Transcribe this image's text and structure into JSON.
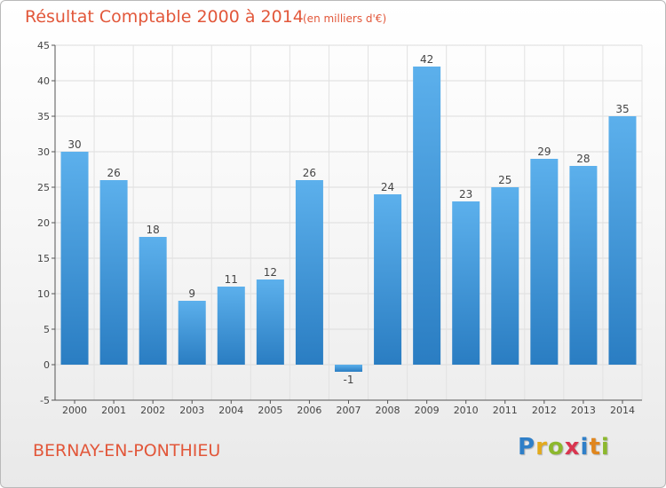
{
  "chart_data": {
    "type": "bar",
    "title": "Résultat Comptable 2000 à 2014",
    "unit_label": "(en milliers d'€)",
    "categories": [
      "2000",
      "2001",
      "2002",
      "2003",
      "2004",
      "2005",
      "2006",
      "2007",
      "2008",
      "2009",
      "2010",
      "2011",
      "2012",
      "2013",
      "2014"
    ],
    "values": [
      30,
      26,
      18,
      9,
      11,
      12,
      26,
      -1,
      24,
      42,
      23,
      25,
      29,
      28,
      35
    ],
    "ylim": [
      -5,
      45
    ],
    "yticks": [
      -5,
      0,
      5,
      10,
      15,
      20,
      25,
      30,
      35,
      40,
      45
    ],
    "xlabel": "",
    "ylabel": "",
    "grid": true,
    "bar_color": "#3d96d9"
  },
  "footer": {
    "town": "BERNAY-EN-PONTHIEU",
    "logo_letters": [
      "P",
      "r",
      "o",
      "x",
      "i",
      "t",
      "i"
    ],
    "logo_colors": [
      "#2f7fc8",
      "#e3aa1c",
      "#8cb82d",
      "#d9354f",
      "#2f7fc8",
      "#e0861e",
      "#8cb82d"
    ]
  }
}
